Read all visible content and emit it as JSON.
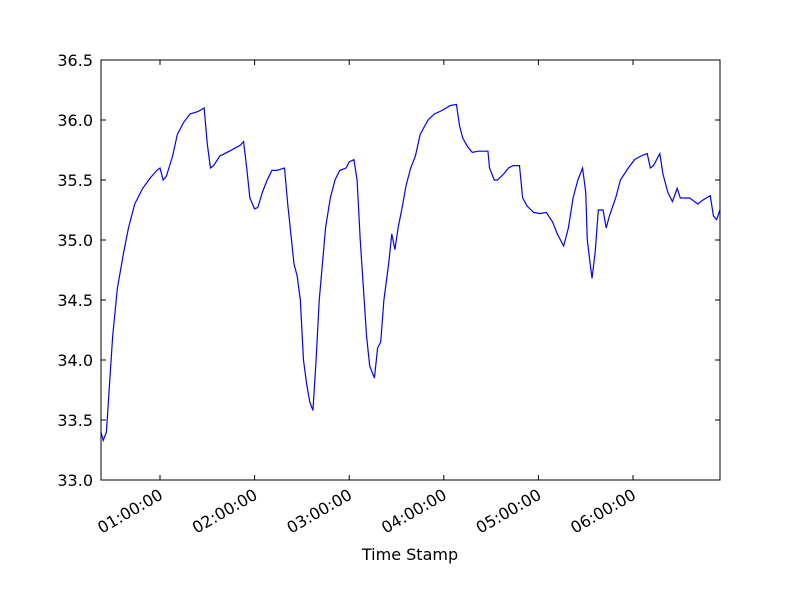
{
  "chart_data": {
    "type": "line",
    "xlabel": "Time Stamp",
    "x": [
      "00:22:35",
      "00:24:00",
      "00:26:00",
      "00:28:00",
      "00:30:00",
      "00:33:00",
      "00:37:00",
      "00:40:00",
      "00:44:00",
      "00:49:00",
      "00:54:00",
      "00:58:00",
      "01:00:00",
      "01:02:00",
      "01:04:00",
      "01:08:00",
      "01:11:00",
      "01:15:00",
      "01:19:00",
      "01:24:00",
      "01:28:00",
      "01:30:00",
      "01:32:00",
      "01:34:00",
      "01:38:00",
      "01:44:00",
      "01:51:00",
      "01:53:00",
      "01:55:00",
      "01:57:00",
      "02:00:00",
      "02:02:00",
      "02:05:00",
      "02:08:00",
      "02:11:00",
      "02:14:00",
      "02:19:00",
      "02:21:00",
      "02:23:00",
      "02:25:00",
      "02:27:00",
      "02:29:00",
      "02:31:00",
      "02:33:00",
      "02:35:00",
      "02:37:00",
      "02:39:00",
      "02:41:00",
      "02:43:00",
      "02:45:00",
      "02:48:00",
      "02:51:00",
      "02:54:00",
      "02:58:00",
      "03:00:00",
      "03:03:00",
      "03:05:00",
      "03:07:00",
      "03:09:00",
      "03:11:00",
      "03:13:00",
      "03:16:00",
      "03:18:00",
      "03:20:00",
      "03:22:00",
      "03:25:00",
      "03:27:00",
      "03:29:00",
      "03:31:00",
      "03:34:00",
      "03:36:00",
      "03:39:00",
      "03:42:00",
      "03:45:00",
      "03:50:00",
      "03:54:00",
      "03:59:00",
      "04:04:00",
      "04:08:00",
      "04:10:00",
      "04:12:00",
      "04:15:00",
      "04:18:00",
      "04:22:00",
      "04:28:00",
      "04:29:00",
      "04:32:00",
      "04:34:00",
      "04:38:00",
      "04:41:00",
      "04:44:00",
      "04:48:00",
      "04:50:00",
      "04:53:00",
      "04:57:00",
      "05:01:00",
      "05:05:00",
      "05:09:00",
      "05:12:00",
      "05:16:00",
      "05:19:00",
      "05:22:00",
      "05:25:00",
      "05:28:00",
      "05:30:00",
      "05:31:00",
      "05:34:00",
      "05:36:00",
      "05:38:00",
      "05:41:00",
      "05:43:00",
      "05:45:00",
      "05:49:00",
      "05:52:00",
      "05:57:00",
      "06:01:00",
      "06:05:00",
      "06:09:00",
      "06:11:00",
      "06:13:00",
      "06:17:00",
      "06:19:00",
      "06:22:00",
      "06:25:00",
      "06:28:00",
      "06:30:00",
      "06:36:00",
      "06:41:00",
      "06:44:00",
      "06:49:00",
      "06:51:00",
      "06:53:00",
      "06:55:10"
    ],
    "series": [
      {
        "color": "#0000ff",
        "values": [
          33.4,
          33.33,
          33.4,
          33.8,
          34.2,
          34.6,
          34.9,
          35.1,
          35.3,
          35.43,
          35.52,
          35.58,
          35.6,
          35.5,
          35.53,
          35.7,
          35.88,
          35.98,
          36.05,
          36.07,
          36.1,
          35.8,
          35.6,
          35.62,
          35.7,
          35.74,
          35.79,
          35.82,
          35.6,
          35.35,
          35.26,
          35.27,
          35.4,
          35.5,
          35.58,
          35.58,
          35.6,
          35.3,
          35.05,
          34.8,
          34.7,
          34.5,
          34.0,
          33.8,
          33.65,
          33.58,
          34.0,
          34.5,
          34.8,
          35.1,
          35.35,
          35.5,
          35.58,
          35.6,
          35.65,
          35.67,
          35.5,
          35.0,
          34.6,
          34.2,
          33.95,
          33.85,
          34.1,
          34.15,
          34.5,
          34.8,
          35.05,
          34.92,
          35.1,
          35.3,
          35.45,
          35.6,
          35.7,
          35.88,
          36.0,
          36.05,
          36.08,
          36.12,
          36.13,
          35.95,
          35.85,
          35.78,
          35.73,
          35.74,
          35.74,
          35.6,
          35.5,
          35.5,
          35.55,
          35.6,
          35.62,
          35.62,
          35.35,
          35.28,
          35.23,
          35.22,
          35.23,
          35.15,
          35.05,
          34.95,
          35.1,
          35.35,
          35.5,
          35.6,
          35.4,
          35.0,
          34.68,
          34.9,
          35.25,
          35.25,
          35.1,
          35.2,
          35.35,
          35.5,
          35.6,
          35.67,
          35.7,
          35.72,
          35.6,
          35.62,
          35.72,
          35.55,
          35.4,
          35.32,
          35.43,
          35.35,
          35.35,
          35.3,
          35.33,
          35.37,
          35.2,
          35.17,
          35.25
        ]
      }
    ],
    "xlim": [
      "00:22:35",
      "06:55:10"
    ],
    "xticks": [
      "01:00:00",
      "02:00:00",
      "03:00:00",
      "04:00:00",
      "05:00:00",
      "06:00:00"
    ],
    "ylim": [
      33.0,
      36.5
    ],
    "yticks": [
      {
        "value": 33.0,
        "label": "33.0"
      },
      {
        "value": 33.5,
        "label": "33.5"
      },
      {
        "value": 34.0,
        "label": "34.0"
      },
      {
        "value": 34.5,
        "label": "34.5"
      },
      {
        "value": 35.0,
        "label": "35.0"
      },
      {
        "value": 35.5,
        "label": "35.5"
      },
      {
        "value": 36.0,
        "label": "36.0"
      },
      {
        "value": 36.5,
        "label": "36.5"
      }
    ]
  }
}
